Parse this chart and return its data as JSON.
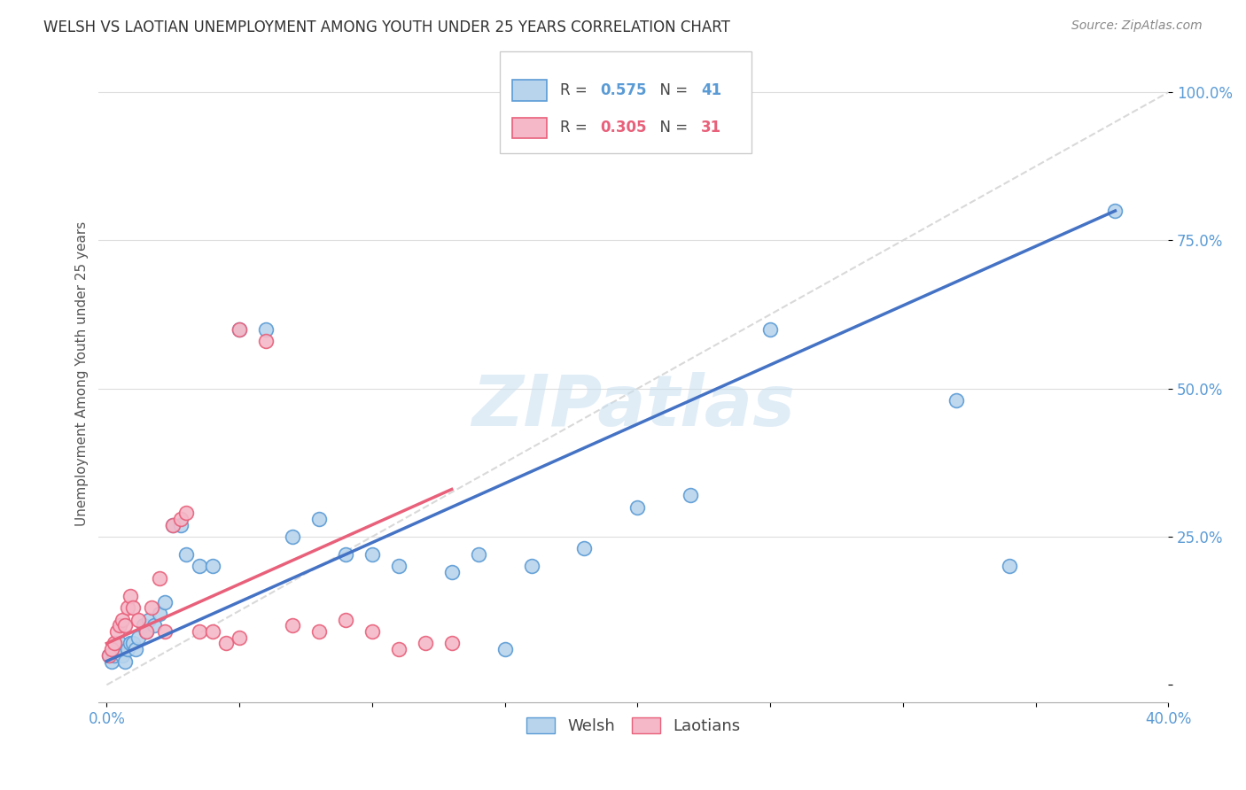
{
  "title": "WELSH VS LAOTIAN UNEMPLOYMENT AMONG YOUTH UNDER 25 YEARS CORRELATION CHART",
  "source": "Source: ZipAtlas.com",
  "ylabel": "Unemployment Among Youth under 25 years",
  "welsh_R": 0.575,
  "welsh_N": 41,
  "laotian_R": 0.305,
  "laotian_N": 31,
  "welsh_color": "#b8d4ed",
  "welsh_edge_color": "#5b9bd5",
  "laotian_color": "#f4b8c8",
  "laotian_edge_color": "#e8607a",
  "welsh_line_color": "#4472c4",
  "laotian_line_color": "#d95f7a",
  "diagonal_color": "#d9d9d9",
  "watermark": "ZIPatlas",
  "xlim": [
    0.0,
    0.4
  ],
  "ylim": [
    0.0,
    1.08
  ],
  "yticks": [
    0.0,
    0.25,
    0.5,
    0.75,
    1.0
  ],
  "ytick_labels": [
    "",
    "25.0%",
    "50.0%",
    "75.0%",
    "100.0%"
  ],
  "xtick_labels": [
    "0.0%",
    "",
    "",
    "",
    "",
    "",
    "",
    "",
    "40.0%"
  ],
  "welsh_x": [
    0.001,
    0.002,
    0.003,
    0.004,
    0.005,
    0.006,
    0.007,
    0.008,
    0.009,
    0.01,
    0.011,
    0.012,
    0.014,
    0.015,
    0.016,
    0.018,
    0.02,
    0.022,
    0.025,
    0.028,
    0.03,
    0.035,
    0.04,
    0.05,
    0.06,
    0.07,
    0.08,
    0.09,
    0.1,
    0.11,
    0.13,
    0.15,
    0.16,
    0.18,
    0.2,
    0.22,
    0.25,
    0.14,
    0.32,
    0.38,
    0.34
  ],
  "welsh_y": [
    0.05,
    0.04,
    0.05,
    0.06,
    0.07,
    0.05,
    0.04,
    0.06,
    0.07,
    0.07,
    0.06,
    0.08,
    0.1,
    0.09,
    0.11,
    0.1,
    0.12,
    0.14,
    0.27,
    0.27,
    0.22,
    0.2,
    0.2,
    0.6,
    0.6,
    0.25,
    0.28,
    0.22,
    0.22,
    0.2,
    0.19,
    0.06,
    0.2,
    0.23,
    0.3,
    0.32,
    0.6,
    0.22,
    0.48,
    0.8,
    0.2
  ],
  "laotian_x": [
    0.001,
    0.002,
    0.003,
    0.004,
    0.005,
    0.006,
    0.007,
    0.008,
    0.009,
    0.01,
    0.012,
    0.015,
    0.017,
    0.02,
    0.022,
    0.025,
    0.028,
    0.03,
    0.035,
    0.04,
    0.045,
    0.05,
    0.06,
    0.07,
    0.08,
    0.09,
    0.1,
    0.11,
    0.12,
    0.05,
    0.13
  ],
  "laotian_y": [
    0.05,
    0.06,
    0.07,
    0.09,
    0.1,
    0.11,
    0.1,
    0.13,
    0.15,
    0.13,
    0.11,
    0.09,
    0.13,
    0.18,
    0.09,
    0.27,
    0.28,
    0.29,
    0.09,
    0.09,
    0.07,
    0.08,
    0.58,
    0.1,
    0.09,
    0.11,
    0.09,
    0.06,
    0.07,
    0.6,
    0.07
  ],
  "welsh_line_x": [
    0.0,
    0.38
  ],
  "welsh_line_y": [
    0.04,
    0.8
  ],
  "laotian_line_x": [
    0.0,
    0.13
  ],
  "laotian_line_y": [
    0.07,
    0.33
  ]
}
